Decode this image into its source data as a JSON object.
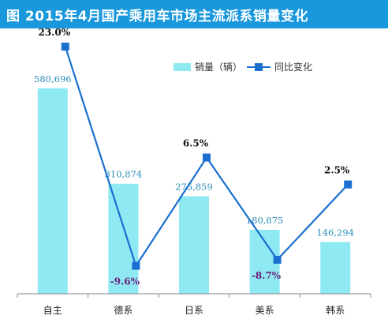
{
  "header": {
    "title": "图  2015年4月国产乘用车市场主流派系销量变化"
  },
  "legend": {
    "sales_label": "销量（辆）",
    "yoy_label": "同比变化"
  },
  "colors": {
    "bar": "#8fe9f3",
    "line": "#1a6fd0",
    "title_bg": "#1a98dc",
    "negative_label": "#6b1f7a"
  },
  "chart_data": {
    "type": "bar",
    "title": "图  2015年4月国产乘用车市场主流派系销量变化",
    "categories": [
      "自主",
      "德系",
      "日系",
      "美系",
      "韩系"
    ],
    "series": [
      {
        "name": "销量（辆）",
        "type": "bar",
        "values": [
          580696,
          310874,
          275859,
          180875,
          146294
        ],
        "labels": [
          "580,696",
          "310,874",
          "275,859",
          "180,875",
          "146,294"
        ]
      },
      {
        "name": "同比变化",
        "type": "line",
        "values": [
          23.0,
          -9.6,
          6.5,
          -8.7,
          2.5
        ],
        "labels": [
          "23.0%",
          "-9.6%",
          "6.5%",
          "-8.7%",
          "2.5%"
        ]
      }
    ],
    "bar_ylim": [
      0,
      750000
    ],
    "line_ylim": [
      -12,
      25
    ],
    "grid": false,
    "legend_position": "top-right"
  }
}
